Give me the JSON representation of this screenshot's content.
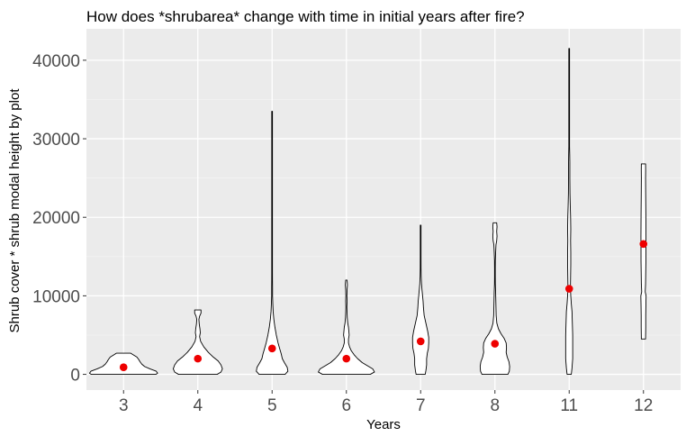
{
  "chart_data": {
    "type": "violin",
    "title": "How does *shrubarea* change with time in initial years after fire?",
    "xlabel": "Years",
    "ylabel": "Shrub cover * shrub modal height by plot",
    "categories": [
      "3",
      "4",
      "5",
      "6",
      "7",
      "8",
      "11",
      "12"
    ],
    "ylim": [
      -2000,
      44000
    ],
    "yticks": [
      0,
      10000,
      20000,
      30000,
      40000
    ],
    "ytick_labels": [
      "0",
      "10000",
      "20000",
      "30000",
      "40000"
    ],
    "grid": true,
    "legend": "none",
    "colors": {
      "panel_background": "#ebebeb",
      "grid_major": "#ffffff",
      "grid_minor": "#f5f5f5",
      "violin_fill": "#ffffff",
      "violin_outline": "#000000",
      "mean_point": "#ee0000",
      "tick_text": "#4d4d4d"
    },
    "series": [
      {
        "category": "3",
        "mean": 900,
        "min": 0,
        "max": 2700,
        "density": [
          [
            0,
            0.92
          ],
          [
            150,
            0.97
          ],
          [
            400,
            0.93
          ],
          [
            700,
            0.75
          ],
          [
            1000,
            0.6
          ],
          [
            1300,
            0.52
          ],
          [
            1600,
            0.47
          ],
          [
            1900,
            0.43
          ],
          [
            2200,
            0.38
          ],
          [
            2500,
            0.27
          ],
          [
            2700,
            0.2
          ]
        ]
      },
      {
        "category": "4",
        "mean": 2000,
        "min": 0,
        "max": 8200,
        "density": [
          [
            0,
            0.55
          ],
          [
            300,
            0.66
          ],
          [
            700,
            0.7
          ],
          [
            1200,
            0.66
          ],
          [
            1700,
            0.58
          ],
          [
            2200,
            0.44
          ],
          [
            2800,
            0.3
          ],
          [
            3500,
            0.17
          ],
          [
            4200,
            0.08
          ],
          [
            4800,
            0.05
          ],
          [
            5300,
            0.07
          ],
          [
            5800,
            0.06
          ],
          [
            6400,
            0.04
          ],
          [
            7000,
            0.03
          ],
          [
            7400,
            0.05
          ],
          [
            7800,
            0.09
          ],
          [
            8200,
            0.09
          ]
        ]
      },
      {
        "category": "5",
        "mean": 3300,
        "min": 0,
        "max": 33500,
        "density": [
          [
            0,
            0.37
          ],
          [
            400,
            0.45
          ],
          [
            900,
            0.43
          ],
          [
            1500,
            0.35
          ],
          [
            2000,
            0.29
          ],
          [
            2600,
            0.26
          ],
          [
            3200,
            0.22
          ],
          [
            4000,
            0.17
          ],
          [
            5000,
            0.12
          ],
          [
            6000,
            0.08
          ],
          [
            7000,
            0.05
          ],
          [
            8000,
            0.03
          ],
          [
            9000,
            0.02
          ],
          [
            10000,
            0.013
          ],
          [
            11000,
            0.013
          ],
          [
            12000,
            0.011
          ],
          [
            13000,
            0.01
          ],
          [
            14500,
            0.006
          ],
          [
            16000,
            0.004
          ],
          [
            17000,
            0.003
          ],
          [
            18000,
            0.0015
          ],
          [
            20000,
            0.0015
          ],
          [
            22000,
            0.0012
          ],
          [
            25000,
            0.001
          ],
          [
            28000,
            0.001
          ],
          [
            31000,
            0.0008
          ],
          [
            33500,
            0.0008
          ]
        ]
      },
      {
        "category": "6",
        "mean": 2000,
        "min": 0,
        "max": 12000,
        "density": [
          [
            0,
            0.68
          ],
          [
            300,
            0.8
          ],
          [
            700,
            0.75
          ],
          [
            1100,
            0.6
          ],
          [
            1500,
            0.45
          ],
          [
            2000,
            0.32
          ],
          [
            2500,
            0.22
          ],
          [
            3000,
            0.14
          ],
          [
            3500,
            0.09
          ],
          [
            4000,
            0.06
          ],
          [
            4500,
            0.06
          ],
          [
            5000,
            0.08
          ],
          [
            5500,
            0.07
          ],
          [
            6000,
            0.06
          ],
          [
            6500,
            0.04
          ],
          [
            7200,
            0.025
          ],
          [
            8000,
            0.018
          ],
          [
            8600,
            0.014
          ],
          [
            9300,
            0.02
          ],
          [
            10000,
            0.015
          ],
          [
            10800,
            0.02
          ],
          [
            11400,
            0.03
          ],
          [
            12000,
            0.02
          ]
        ]
      },
      {
        "category": "7",
        "mean": 4200,
        "min": 0,
        "max": 19000,
        "density": [
          [
            0,
            0.13
          ],
          [
            500,
            0.15
          ],
          [
            1200,
            0.17
          ],
          [
            2000,
            0.17
          ],
          [
            2700,
            0.19
          ],
          [
            3300,
            0.22
          ],
          [
            4000,
            0.23
          ],
          [
            4700,
            0.23
          ],
          [
            5500,
            0.2
          ],
          [
            6500,
            0.15
          ],
          [
            7500,
            0.1
          ],
          [
            8500,
            0.08
          ],
          [
            9300,
            0.07
          ],
          [
            10000,
            0.055
          ],
          [
            10700,
            0.04
          ],
          [
            11500,
            0.025
          ],
          [
            12500,
            0.015
          ],
          [
            13500,
            0.011
          ],
          [
            15000,
            0.008
          ],
          [
            16500,
            0.006
          ],
          [
            18000,
            0.006
          ],
          [
            19000,
            0.005
          ]
        ]
      },
      {
        "category": "8",
        "mean": 3900,
        "min": 0,
        "max": 19300,
        "density": [
          [
            0,
            0.37
          ],
          [
            400,
            0.41
          ],
          [
            1000,
            0.42
          ],
          [
            1600,
            0.4
          ],
          [
            2200,
            0.35
          ],
          [
            2800,
            0.32
          ],
          [
            3400,
            0.33
          ],
          [
            4000,
            0.32
          ],
          [
            4600,
            0.26
          ],
          [
            5200,
            0.17
          ],
          [
            5800,
            0.1
          ],
          [
            6500,
            0.055
          ],
          [
            7500,
            0.035
          ],
          [
            8500,
            0.03
          ],
          [
            9500,
            0.025
          ],
          [
            10500,
            0.02
          ],
          [
            11500,
            0.012
          ],
          [
            12500,
            0.01
          ],
          [
            13500,
            0.01
          ],
          [
            14500,
            0.012
          ],
          [
            15500,
            0.02
          ],
          [
            16500,
            0.03
          ],
          [
            17000,
            0.05
          ],
          [
            17600,
            0.06
          ],
          [
            18200,
            0.05
          ],
          [
            18800,
            0.06
          ],
          [
            19300,
            0.05
          ]
        ]
      },
      {
        "category": "11",
        "mean": 10900,
        "min": 0,
        "max": 41500,
        "density": [
          [
            0,
            0.06
          ],
          [
            800,
            0.08
          ],
          [
            2000,
            0.1
          ],
          [
            3500,
            0.1
          ],
          [
            5000,
            0.1
          ],
          [
            6500,
            0.09
          ],
          [
            8000,
            0.08
          ],
          [
            9000,
            0.06
          ],
          [
            10000,
            0.045
          ],
          [
            11000,
            0.035
          ],
          [
            12500,
            0.04
          ],
          [
            14000,
            0.045
          ],
          [
            15500,
            0.045
          ],
          [
            17000,
            0.04
          ],
          [
            18500,
            0.045
          ],
          [
            20000,
            0.04
          ],
          [
            21500,
            0.03
          ],
          [
            23000,
            0.022
          ],
          [
            25000,
            0.018
          ],
          [
            27000,
            0.018
          ],
          [
            28000,
            0.015
          ],
          [
            29000,
            0.008
          ],
          [
            30500,
            0.008
          ],
          [
            32000,
            0.004
          ],
          [
            35000,
            0.003
          ],
          [
            38000,
            0.002
          ],
          [
            41500,
            0.002
          ]
        ]
      },
      {
        "category": "12",
        "mean": 16600,
        "min": 4500,
        "max": 26800,
        "density": [
          [
            4500,
            0.06
          ],
          [
            6000,
            0.065
          ],
          [
            7500,
            0.065
          ],
          [
            9000,
            0.07
          ],
          [
            10000,
            0.075
          ],
          [
            10500,
            0.05
          ],
          [
            11500,
            0.06
          ],
          [
            13000,
            0.065
          ],
          [
            14500,
            0.07
          ],
          [
            16000,
            0.07
          ],
          [
            17500,
            0.072
          ],
          [
            19000,
            0.07
          ],
          [
            20500,
            0.068
          ],
          [
            22000,
            0.065
          ],
          [
            23500,
            0.062
          ],
          [
            25000,
            0.06
          ],
          [
            26000,
            0.062
          ],
          [
            26800,
            0.06
          ]
        ]
      }
    ]
  }
}
